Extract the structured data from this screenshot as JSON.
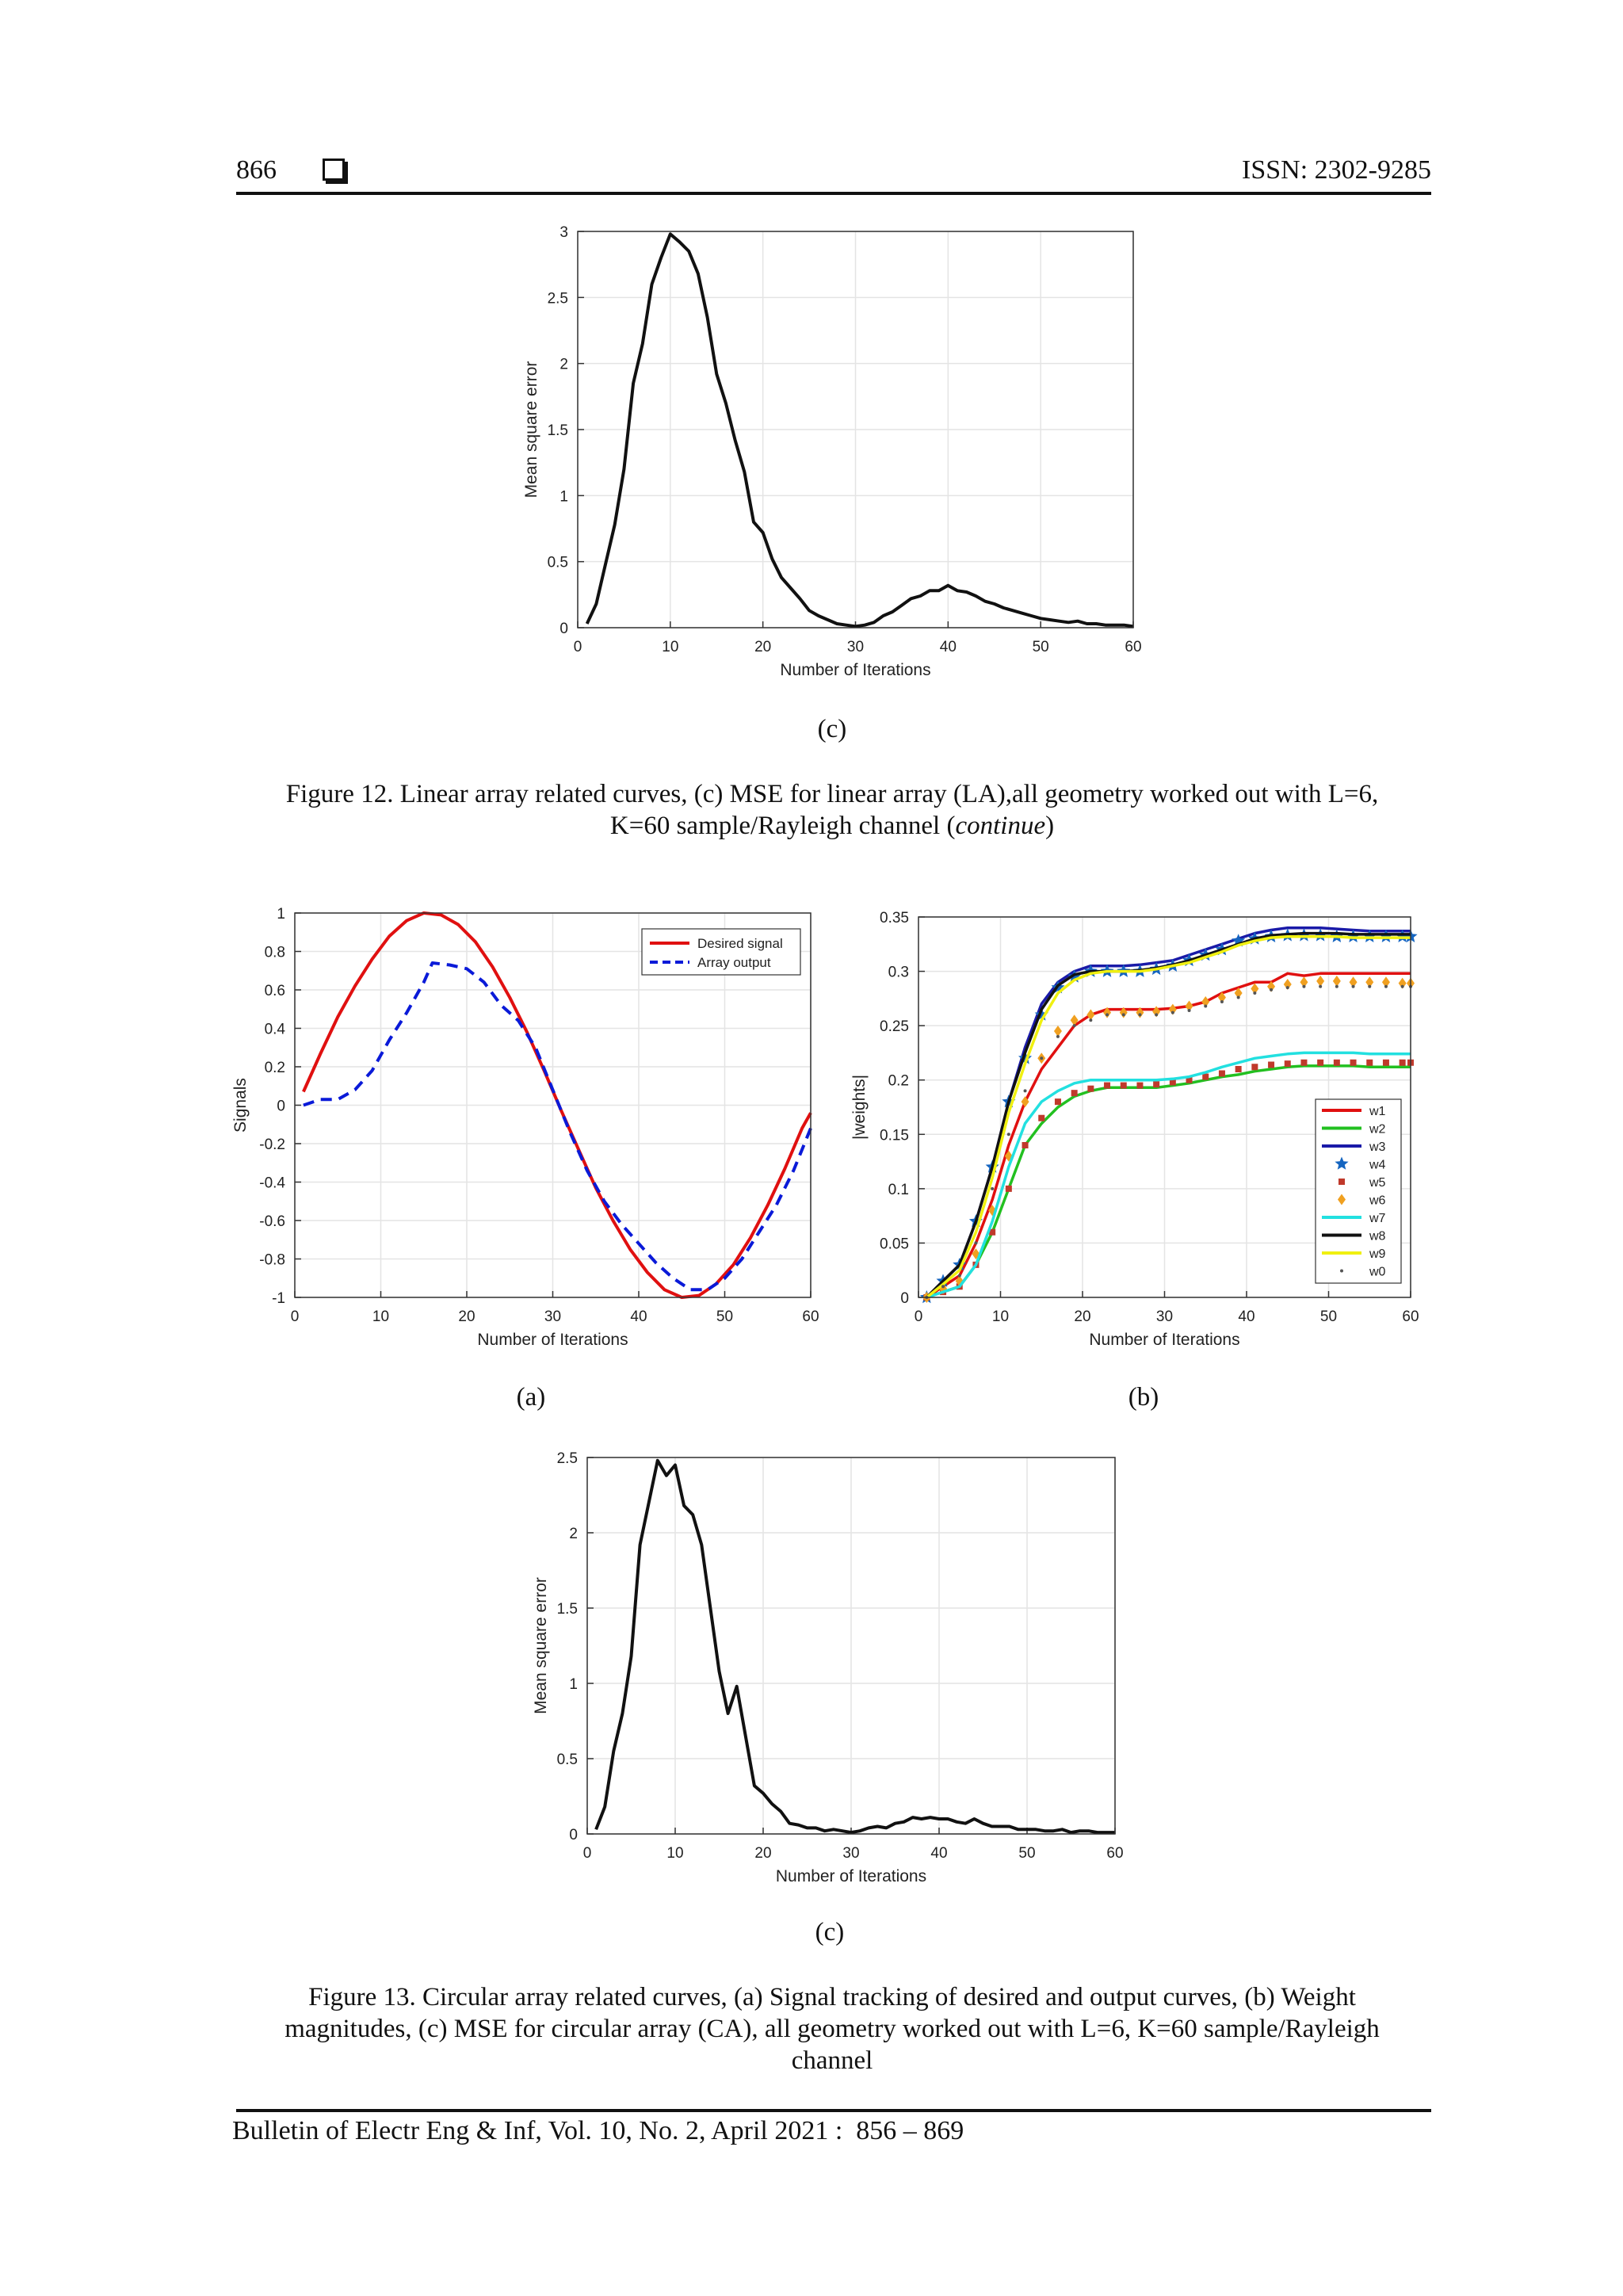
{
  "header": {
    "page_number": "866",
    "issn": "ISSN: 2302-9285"
  },
  "footer": {
    "citation": "Bulletin of Electr Eng & Inf, Vol. 10, No. 2, April 2021 :  856 – 869"
  },
  "fig12": {
    "sublabel": "(c)",
    "caption_line1": "Figure 12. Linear array related curves, (c) MSE for linear array (LA),all geometry worked out with L=6,",
    "caption_line2_pre": "K=60 sample/Rayleigh channel (",
    "caption_line2_em": "continue",
    "caption_line2_post": ")"
  },
  "fig13": {
    "sublabel_a": "(a)",
    "sublabel_b": "(b)",
    "sublabel_c": "(c)",
    "caption_line1": "Figure 13. Circular array related curves, (a) Signal tracking of desired and output curves, (b) Weight",
    "caption_line2": "magnitudes, (c) MSE for circular array (CA), all geometry worked out with L=6, K=60 sample/Rayleigh",
    "caption_line3": "channel"
  },
  "colors": {
    "desired": "#e01010",
    "output": "#0a1ad8",
    "mse": "#111111"
  },
  "chart_data": [
    {
      "id": "mse_la",
      "type": "line",
      "xlabel": "Number of Iterations",
      "ylabel": "Mean square error",
      "xlim": [
        0,
        60
      ],
      "ylim": [
        0,
        3
      ],
      "xticks": [
        0,
        10,
        20,
        30,
        40,
        50,
        60
      ],
      "yticks": [
        0,
        0.5,
        1,
        1.5,
        2,
        2.5,
        3
      ],
      "ytick_labels": [
        "0",
        "0.5",
        "1",
        "1.5",
        "2",
        "2.5",
        "3"
      ],
      "grid": true,
      "series": [
        {
          "name": "MSE",
          "color": "#111111",
          "x": [
            1,
            2,
            3,
            4,
            5,
            6,
            7,
            8,
            9,
            10,
            11,
            12,
            13,
            14,
            15,
            16,
            17,
            18,
            19,
            20,
            21,
            22,
            23,
            24,
            25,
            26,
            27,
            28,
            29,
            30,
            31,
            32,
            33,
            34,
            35,
            36,
            37,
            38,
            39,
            40,
            41,
            42,
            43,
            44,
            45,
            46,
            47,
            48,
            49,
            50,
            51,
            52,
            53,
            54,
            55,
            56,
            57,
            58,
            59,
            60
          ],
          "y": [
            0.03,
            0.18,
            0.48,
            0.78,
            1.2,
            1.85,
            2.15,
            2.6,
            2.8,
            2.98,
            2.92,
            2.85,
            2.68,
            2.35,
            1.92,
            1.7,
            1.42,
            1.18,
            0.8,
            0.72,
            0.52,
            0.38,
            0.3,
            0.22,
            0.13,
            0.09,
            0.06,
            0.03,
            0.02,
            0.01,
            0.02,
            0.04,
            0.09,
            0.12,
            0.17,
            0.22,
            0.24,
            0.28,
            0.28,
            0.32,
            0.28,
            0.27,
            0.24,
            0.2,
            0.18,
            0.15,
            0.13,
            0.11,
            0.09,
            0.07,
            0.06,
            0.05,
            0.04,
            0.05,
            0.03,
            0.03,
            0.02,
            0.02,
            0.02,
            0.01
          ]
        }
      ]
    },
    {
      "id": "signals_ca",
      "type": "line",
      "xlabel": "Number of Iterations",
      "ylabel": "Signals",
      "xlim": [
        0,
        60
      ],
      "ylim": [
        -1,
        1
      ],
      "xticks": [
        0,
        10,
        20,
        30,
        40,
        50,
        60
      ],
      "yticks": [
        -1,
        -0.8,
        -0.6,
        -0.4,
        -0.2,
        0,
        0.2,
        0.4,
        0.6,
        0.8,
        1
      ],
      "ytick_labels": [
        "-1",
        "-0.8",
        "-0.6",
        "-0.4",
        "-0.2",
        "0",
        "0.2",
        "0.4",
        "0.6",
        "0.8",
        "1"
      ],
      "grid": true,
      "legend_position": "top-right",
      "series": [
        {
          "name": "Desired signal",
          "color": "#e01010",
          "style": "solid",
          "x": [
            1,
            3,
            5,
            7,
            9,
            11,
            13,
            15,
            17,
            19,
            21,
            23,
            25,
            27,
            29,
            31,
            33,
            35,
            37,
            39,
            41,
            43,
            45,
            47,
            49,
            51,
            53,
            55,
            57,
            59,
            60
          ],
          "y": [
            0.07,
            0.27,
            0.46,
            0.62,
            0.76,
            0.88,
            0.96,
            1.0,
            0.99,
            0.94,
            0.85,
            0.72,
            0.56,
            0.38,
            0.18,
            -0.03,
            -0.23,
            -0.43,
            -0.6,
            -0.75,
            -0.87,
            -0.96,
            -1.0,
            -0.99,
            -0.93,
            -0.83,
            -0.69,
            -0.52,
            -0.33,
            -0.12,
            -0.04
          ]
        },
        {
          "name": "Array output",
          "color": "#0a1ad8",
          "style": "dashed",
          "x": [
            1,
            3,
            5,
            7,
            9,
            11,
            13,
            15,
            16,
            18,
            20,
            22,
            24,
            26,
            28,
            30,
            32,
            34,
            36,
            38,
            40,
            42,
            44,
            46,
            48,
            50,
            52,
            54,
            56,
            58,
            60
          ],
          "y": [
            0.0,
            0.03,
            0.03,
            0.08,
            0.18,
            0.34,
            0.48,
            0.64,
            0.74,
            0.73,
            0.71,
            0.64,
            0.52,
            0.44,
            0.3,
            0.08,
            -0.14,
            -0.34,
            -0.5,
            -0.62,
            -0.72,
            -0.82,
            -0.9,
            -0.96,
            -0.96,
            -0.9,
            -0.8,
            -0.66,
            -0.52,
            -0.34,
            -0.12
          ]
        }
      ]
    },
    {
      "id": "weights_ca",
      "type": "line",
      "xlabel": "Number of Iterations",
      "ylabel": "|weights|",
      "xlim": [
        0,
        60
      ],
      "ylim": [
        0,
        0.35
      ],
      "xticks": [
        0,
        10,
        20,
        30,
        40,
        50,
        60
      ],
      "yticks": [
        0,
        0.05,
        0.1,
        0.15,
        0.2,
        0.25,
        0.3,
        0.35
      ],
      "ytick_labels": [
        "0",
        "0.05",
        "0.1",
        "0.15",
        "0.2",
        "0.25",
        "0.3",
        "0.35"
      ],
      "grid": true,
      "legend_position": "bottom-right",
      "x": [
        1,
        3,
        5,
        7,
        9,
        11,
        13,
        15,
        17,
        19,
        21,
        23,
        25,
        27,
        29,
        31,
        33,
        35,
        37,
        39,
        41,
        43,
        45,
        47,
        49,
        51,
        53,
        55,
        57,
        59,
        60
      ],
      "series": [
        {
          "name": "w1",
          "color": "#e01010",
          "marker": "line",
          "y": [
            0,
            0.01,
            0.02,
            0.05,
            0.09,
            0.14,
            0.18,
            0.21,
            0.23,
            0.25,
            0.26,
            0.265,
            0.265,
            0.265,
            0.265,
            0.266,
            0.268,
            0.272,
            0.28,
            0.285,
            0.29,
            0.29,
            0.298,
            0.296,
            0.298,
            0.298,
            0.298,
            0.298,
            0.298,
            0.298,
            0.298
          ]
        },
        {
          "name": "w2",
          "color": "#22c020",
          "marker": "line",
          "y": [
            0,
            0.005,
            0.01,
            0.03,
            0.06,
            0.1,
            0.14,
            0.16,
            0.175,
            0.185,
            0.19,
            0.193,
            0.193,
            0.193,
            0.193,
            0.195,
            0.197,
            0.2,
            0.203,
            0.205,
            0.208,
            0.21,
            0.212,
            0.213,
            0.213,
            0.213,
            0.213,
            0.212,
            0.212,
            0.212,
            0.212
          ]
        },
        {
          "name": "w3",
          "color": "#1a1aa8",
          "marker": "line",
          "y": [
            0,
            0.015,
            0.03,
            0.07,
            0.12,
            0.18,
            0.23,
            0.27,
            0.29,
            0.3,
            0.305,
            0.305,
            0.305,
            0.306,
            0.308,
            0.31,
            0.315,
            0.32,
            0.325,
            0.33,
            0.335,
            0.338,
            0.34,
            0.34,
            0.34,
            0.339,
            0.338,
            0.337,
            0.337,
            0.337,
            0.337
          ]
        },
        {
          "name": "w4",
          "color": "#1565c0",
          "marker": "star",
          "y": [
            0,
            0.015,
            0.03,
            0.07,
            0.12,
            0.18,
            0.22,
            0.26,
            0.285,
            0.295,
            0.3,
            0.3,
            0.3,
            0.3,
            0.302,
            0.305,
            0.31,
            0.315,
            0.32,
            0.328,
            0.33,
            0.332,
            0.333,
            0.333,
            0.333,
            0.332,
            0.332,
            0.332,
            0.332,
            0.332,
            0.332
          ]
        },
        {
          "name": "w5",
          "color": "#c0392b",
          "marker": "square",
          "y": [
            0,
            0.005,
            0.01,
            0.03,
            0.06,
            0.1,
            0.14,
            0.165,
            0.18,
            0.188,
            0.192,
            0.195,
            0.195,
            0.195,
            0.196,
            0.198,
            0.2,
            0.203,
            0.206,
            0.21,
            0.212,
            0.214,
            0.215,
            0.216,
            0.216,
            0.216,
            0.216,
            0.216,
            0.216,
            0.216,
            0.216
          ]
        },
        {
          "name": "w6",
          "color": "#f0a020",
          "marker": "diamond",
          "y": [
            0,
            0.008,
            0.015,
            0.04,
            0.08,
            0.13,
            0.18,
            0.22,
            0.245,
            0.255,
            0.26,
            0.262,
            0.262,
            0.262,
            0.263,
            0.265,
            0.268,
            0.272,
            0.276,
            0.28,
            0.284,
            0.286,
            0.288,
            0.29,
            0.291,
            0.291,
            0.29,
            0.29,
            0.29,
            0.289,
            0.289
          ]
        },
        {
          "name": "w7",
          "color": "#22e0e0",
          "marker": "line",
          "y": [
            0,
            0.005,
            0.01,
            0.03,
            0.07,
            0.12,
            0.16,
            0.18,
            0.19,
            0.197,
            0.2,
            0.2,
            0.2,
            0.2,
            0.2,
            0.201,
            0.203,
            0.207,
            0.212,
            0.216,
            0.22,
            0.222,
            0.224,
            0.225,
            0.225,
            0.225,
            0.225,
            0.224,
            0.224,
            0.224,
            0.224
          ]
        },
        {
          "name": "w8",
          "color": "#111111",
          "marker": "line",
          "y": [
            0,
            0.015,
            0.03,
            0.07,
            0.12,
            0.18,
            0.225,
            0.265,
            0.287,
            0.297,
            0.3,
            0.3,
            0.3,
            0.301,
            0.303,
            0.306,
            0.31,
            0.315,
            0.32,
            0.325,
            0.33,
            0.333,
            0.334,
            0.335,
            0.335,
            0.335,
            0.334,
            0.334,
            0.334,
            0.334,
            0.334
          ]
        },
        {
          "name": "w9",
          "color": "#f0f010",
          "marker": "line",
          "y": [
            0,
            0.012,
            0.025,
            0.06,
            0.11,
            0.17,
            0.215,
            0.255,
            0.28,
            0.292,
            0.298,
            0.3,
            0.3,
            0.3,
            0.302,
            0.305,
            0.308,
            0.313,
            0.318,
            0.324,
            0.328,
            0.331,
            0.332,
            0.332,
            0.332,
            0.332,
            0.331,
            0.331,
            0.331,
            0.331,
            0.331
          ]
        },
        {
          "name": "w0",
          "color": "#555555",
          "marker": "dot",
          "y": [
            0,
            0.01,
            0.02,
            0.05,
            0.1,
            0.15,
            0.19,
            0.22,
            0.24,
            0.25,
            0.255,
            0.26,
            0.26,
            0.26,
            0.26,
            0.262,
            0.264,
            0.268,
            0.272,
            0.276,
            0.28,
            0.283,
            0.285,
            0.286,
            0.286,
            0.286,
            0.286,
            0.286,
            0.286,
            0.286,
            0.286
          ]
        }
      ]
    },
    {
      "id": "mse_ca",
      "type": "line",
      "xlabel": "Number of Iterations",
      "ylabel": "Mean square error",
      "xlim": [
        0,
        60
      ],
      "ylim": [
        0,
        2.5
      ],
      "xticks": [
        0,
        10,
        20,
        30,
        40,
        50,
        60
      ],
      "yticks": [
        0,
        0.5,
        1,
        1.5,
        2,
        2.5
      ],
      "ytick_labels": [
        "0",
        "0.5",
        "1",
        "1.5",
        "2",
        "2.5"
      ],
      "grid": true,
      "series": [
        {
          "name": "MSE",
          "color": "#111111",
          "x": [
            1,
            2,
            3,
            4,
            5,
            6,
            7,
            8,
            9,
            10,
            11,
            12,
            13,
            14,
            15,
            16,
            17,
            18,
            19,
            20,
            21,
            22,
            23,
            24,
            25,
            26,
            27,
            28,
            29,
            30,
            31,
            32,
            33,
            34,
            35,
            36,
            37,
            38,
            39,
            40,
            41,
            42,
            43,
            44,
            45,
            46,
            47,
            48,
            49,
            50,
            51,
            52,
            53,
            54,
            55,
            56,
            57,
            58,
            59,
            60
          ],
          "y": [
            0.03,
            0.18,
            0.55,
            0.8,
            1.18,
            1.92,
            2.2,
            2.48,
            2.38,
            2.45,
            2.18,
            2.12,
            1.92,
            1.5,
            1.08,
            0.8,
            0.98,
            0.65,
            0.32,
            0.27,
            0.2,
            0.15,
            0.07,
            0.06,
            0.04,
            0.04,
            0.02,
            0.03,
            0.02,
            0.01,
            0.02,
            0.04,
            0.05,
            0.04,
            0.07,
            0.08,
            0.11,
            0.1,
            0.11,
            0.1,
            0.1,
            0.08,
            0.07,
            0.1,
            0.07,
            0.05,
            0.05,
            0.05,
            0.03,
            0.03,
            0.03,
            0.02,
            0.02,
            0.03,
            0.01,
            0.02,
            0.02,
            0.01,
            0.01,
            0.01
          ]
        }
      ]
    }
  ]
}
